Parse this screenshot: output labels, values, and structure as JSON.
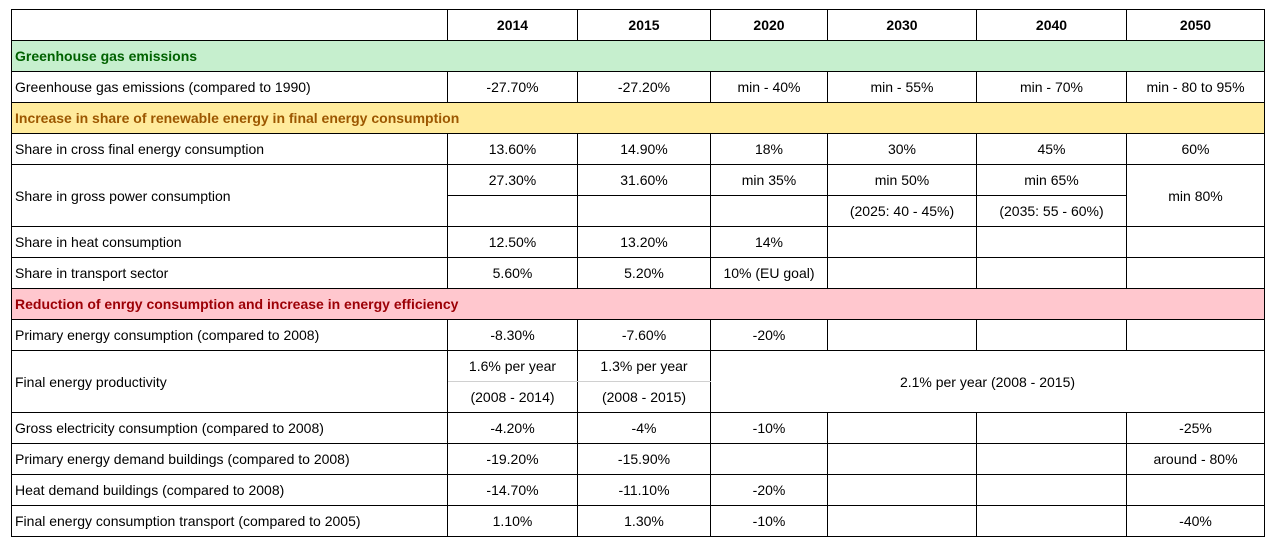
{
  "columns": [
    "",
    "2014",
    "2015",
    "2020",
    "2030",
    "2040",
    "2050"
  ],
  "sections": {
    "ghg": "Greenhouse gas emissions",
    "renewables": "Increase in share of renewable energy in final energy consumption",
    "efficiency": "Reduction of enrgy consumption and increase in energy efficiency"
  },
  "rows": {
    "ghg_emissions": {
      "label": "Greenhouse gas emissions (compared to 1990)",
      "v2014": "-27.70%",
      "v2015": "-27.20%",
      "v2020": "min - 40%",
      "v2030": "min - 55%",
      "v2040": "min - 70%",
      "v2050": "min - 80 to 95%"
    },
    "cross_final": {
      "label": "Share in cross final energy consumption",
      "v2014": "13.60%",
      "v2015": "14.90%",
      "v2020": "18%",
      "v2030": "30%",
      "v2040": "45%",
      "v2050": "60%"
    },
    "gross_power": {
      "label": "Share in gross power consumption",
      "v2014": "27.30%",
      "v2015": "31.60%",
      "v2020": "min 35%",
      "v2030": "min 50%",
      "v2030_note": "(2025: 40 - 45%)",
      "v2040": "min 65%",
      "v2040_note": "(2035: 55 - 60%)",
      "v2050": "min 80%"
    },
    "heat": {
      "label": "Share in heat consumption",
      "v2014": "12.50%",
      "v2015": "13.20%",
      "v2020": "14%"
    },
    "transport": {
      "label": "Share in transport sector",
      "v2014": "5.60%",
      "v2015": "5.20%",
      "v2020": "10% (EU goal)"
    },
    "primary": {
      "label": "Primary energy consumption (compared to 2008)",
      "v2014": "-8.30%",
      "v2015": "-7.60%",
      "v2020": "-20%"
    },
    "productivity": {
      "label": "Final energy productivity",
      "v2014": "1.6% per year",
      "v2014_note": "(2008 - 2014)",
      "v2015": "1.3% per year",
      "v2015_note": "(2008 - 2015)",
      "v2020_2050": "2.1% per year (2008 - 2015)"
    },
    "gross_elec": {
      "label": "Gross electricity consumption (compared to 2008)",
      "v2014": "-4.20%",
      "v2015": "-4%",
      "v2020": "-10%",
      "v2050": "-25%"
    },
    "primary_buildings": {
      "label": "Primary energy demand buildings (compared to 2008)",
      "v2014": "-19.20%",
      "v2015": "-15.90%",
      "v2050": "around - 80%"
    },
    "heat_buildings": {
      "label": "Heat demand buildings (compared to 2008)",
      "v2014": "-14.70%",
      "v2015": "-11.10%",
      "v2020": "-20%"
    },
    "transport_final": {
      "label": "Final energy consumption transport (compared to 2005)",
      "v2014": "1.10%",
      "v2015": "1.30%",
      "v2020": "-10%",
      "v2050": "-40%"
    }
  }
}
